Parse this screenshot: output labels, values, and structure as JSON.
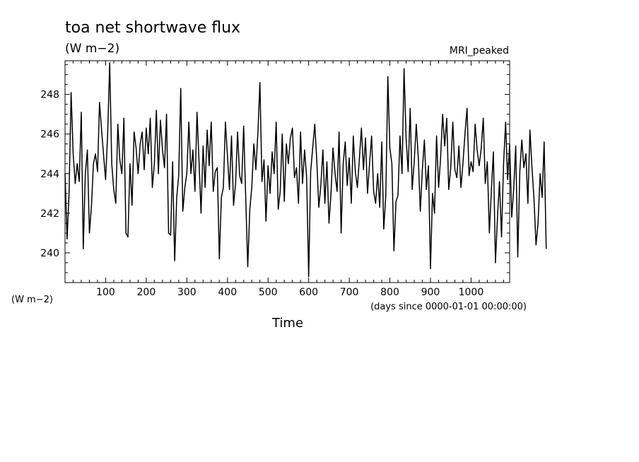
{
  "chart_data": {
    "type": "line",
    "title": "toa net shortwave flux",
    "title_units": "(W m−2)",
    "model_label": "MRI_peaked",
    "ylabel_units": "(W m−2)",
    "xlabel": "Time",
    "xlabel_units": "(days since 0000-01-01 00:00:00)",
    "xlim": [
      0,
      1095
    ],
    "ylim": [
      238.5,
      249.7
    ],
    "x_ticks": [
      100,
      200,
      300,
      400,
      500,
      600,
      700,
      800,
      900,
      1000
    ],
    "y_ticks": [
      240,
      242,
      244,
      246,
      248
    ],
    "grid": false,
    "line_color": "#000000",
    "series": [
      {
        "x_start": 0,
        "x_step": 5,
        "values": [
          244.0,
          240.7,
          243.0,
          248.1,
          245.0,
          243.5,
          244.5,
          243.6,
          247.1,
          240.2,
          244.0,
          245.2,
          241.0,
          242.3,
          244.5,
          245.0,
          244.1,
          247.6,
          246.2,
          244.9,
          243.7,
          246.0,
          249.6,
          244.5,
          243.2,
          242.5,
          246.5,
          244.7,
          244.0,
          246.8,
          241.0,
          240.8,
          244.5,
          242.4,
          246.1,
          245.3,
          244.0,
          245.5,
          246.1,
          244.2,
          246.3,
          245.0,
          246.8,
          243.3,
          244.5,
          247.2,
          244.0,
          246.7,
          245.2,
          244.3,
          247.0,
          241.0,
          240.9,
          244.6,
          239.6,
          242.8,
          243.9,
          248.3,
          242.1,
          243.3,
          244.0,
          246.6,
          244.0,
          245.2,
          243.1,
          247.1,
          244.6,
          242.0,
          245.4,
          243.3,
          246.2,
          244.4,
          246.6,
          243.1,
          244.1,
          244.3,
          239.7,
          242.8,
          243.3,
          246.6,
          244.9,
          243.2,
          245.9,
          242.4,
          243.5,
          246.1,
          243.9,
          243.5,
          246.4,
          242.8,
          239.3,
          242.2,
          243.3,
          245.5,
          244.2,
          246.1,
          248.6,
          243.6,
          244.7,
          241.6,
          244.4,
          243.0,
          245.1,
          244.0,
          246.6,
          242.2,
          243.1,
          246.0,
          242.6,
          245.5,
          244.5,
          245.8,
          246.3,
          243.8,
          244.3,
          242.5,
          246.1,
          243.5,
          245.2,
          243.8,
          238.8,
          244.1,
          245.3,
          246.5,
          244.7,
          242.3,
          243.4,
          245.2,
          242.5,
          244.6,
          241.5,
          243.0,
          245.3,
          244.0,
          243.1,
          246.1,
          241.0,
          244.5,
          245.6,
          243.4,
          244.8,
          242.5,
          245.9,
          244.1,
          243.3,
          244.8,
          246.3,
          244.2,
          245.8,
          243.0,
          244.5,
          245.9,
          243.1,
          242.5,
          244.0,
          242.3,
          245.6,
          241.2,
          242.9,
          248.9,
          245.3,
          244.5,
          240.1,
          242.6,
          242.9,
          245.9,
          244.0,
          249.3,
          245.8,
          244.1,
          247.3,
          243.2,
          244.6,
          246.5,
          244.8,
          242.1,
          244.2,
          245.7,
          243.2,
          244.4,
          239.2,
          243.0,
          242.0,
          245.9,
          243.3,
          244.8,
          247.0,
          245.4,
          246.8,
          243.2,
          244.3,
          246.6,
          244.2,
          243.8,
          245.4,
          243.3,
          244.5,
          246.0,
          247.3,
          243.9,
          244.6,
          244.1,
          246.5,
          245.2,
          244.4,
          245.3,
          246.8,
          243.5,
          244.6,
          241.0,
          243.2,
          245.1,
          239.5,
          241.8,
          243.6,
          240.8,
          244.5,
          246.6,
          243.7,
          245.5,
          241.8,
          243.2,
          245.4,
          239.8,
          244.1,
          245.7,
          244.3,
          245.0,
          242.5,
          246.2,
          244.3,
          242.7,
          240.4,
          241.5,
          244.0,
          242.8,
          245.6,
          240.2
        ]
      }
    ]
  }
}
